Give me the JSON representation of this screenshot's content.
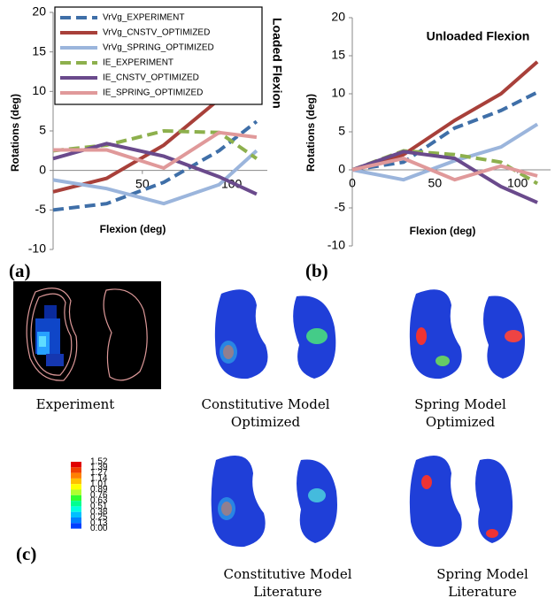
{
  "chart_data": [
    {
      "type": "line",
      "title": "Loaded Flexion",
      "xlabel": "Flexion (deg)",
      "ylabel": "Rotations (deg)",
      "x": [
        0,
        30,
        62,
        93,
        114
      ],
      "xlim": [
        0,
        120
      ],
      "xticks": [
        50,
        100
      ],
      "ylim": [
        -10,
        20
      ],
      "yticks": [
        -10,
        -5,
        0,
        5,
        10,
        15,
        20
      ],
      "legend": "upper left",
      "series": [
        {
          "name": "VrVg_EXPERIMENT",
          "color": "#3f6fa8",
          "dash": true,
          "values": [
            -5,
            -4.2,
            -1.5,
            2.5,
            6.2
          ]
        },
        {
          "name": "VrVg_CNSTV_OPTIMIZED",
          "color": "#a8403a",
          "dash": false,
          "values": [
            -2.7,
            -1,
            3.2,
            9,
            10.2
          ]
        },
        {
          "name": "VrVg_SPRING_OPTIMIZED",
          "color": "#9bb5dc",
          "dash": false,
          "values": [
            -1.2,
            -2.3,
            -4.2,
            -1.8,
            2.5
          ]
        },
        {
          "name": "IE_EXPERIMENT",
          "color": "#8db04d",
          "dash": true,
          "values": [
            2.5,
            3.2,
            5,
            4.8,
            1.5
          ]
        },
        {
          "name": "IE_CNSTV_OPTIMIZED",
          "color": "#6a4a8c",
          "dash": false,
          "values": [
            1.5,
            3.4,
            1.8,
            -0.8,
            -3
          ]
        },
        {
          "name": "IE_SPRING_OPTIMIZED",
          "color": "#e0999a",
          "dash": false,
          "values": [
            2.6,
            2.6,
            0.3,
            4.8,
            4.2
          ]
        }
      ]
    },
    {
      "type": "line",
      "title": "Unloaded Flexion",
      "xlabel": "Flexion (deg)",
      "ylabel": "Rotations (deg)",
      "x": [
        0,
        31,
        62,
        90,
        112
      ],
      "xlim": [
        0,
        120
      ],
      "xticks": [
        0,
        50,
        100
      ],
      "ylim": [
        -10,
        20
      ],
      "yticks": [
        -10,
        -5,
        0,
        5,
        10,
        15,
        20
      ],
      "series": [
        {
          "color": "#3f6fa8",
          "dash": true,
          "values": [
            0,
            1,
            5.5,
            7.8,
            10.2
          ]
        },
        {
          "color": "#a8403a",
          "dash": false,
          "values": [
            0,
            2,
            6.5,
            10,
            14.2
          ]
        },
        {
          "color": "#9bb5dc",
          "dash": false,
          "values": [
            0,
            -1.3,
            1.2,
            3,
            6
          ]
        },
        {
          "color": "#8db04d",
          "dash": true,
          "values": [
            0,
            2.5,
            2,
            1,
            -1.8
          ]
        },
        {
          "color": "#6a4a8c",
          "dash": false,
          "values": [
            0,
            2.4,
            1.5,
            -2.2,
            -4.3
          ]
        },
        {
          "color": "#e0999a",
          "dash": false,
          "values": [
            0,
            1.5,
            -1.3,
            0.5,
            -0.8
          ]
        }
      ]
    }
  ],
  "panel_labels": [
    "(a)",
    "(b)",
    "(c)"
  ],
  "contact_scale": [
    "1.52",
    "1.39",
    "1.27",
    "1.14",
    "1.01",
    "0.89",
    "0.76",
    "0.63",
    "0.51",
    "0.38",
    "0.25",
    "0.13",
    "0.00"
  ],
  "captions": [
    [
      "Experiment"
    ],
    [
      "Constitutive Model",
      "Optimized"
    ],
    [
      "Spring Model",
      "Optimized"
    ],
    [
      "Constitutive Model",
      "Literature"
    ],
    [
      "Spring Model",
      "Literature"
    ]
  ]
}
